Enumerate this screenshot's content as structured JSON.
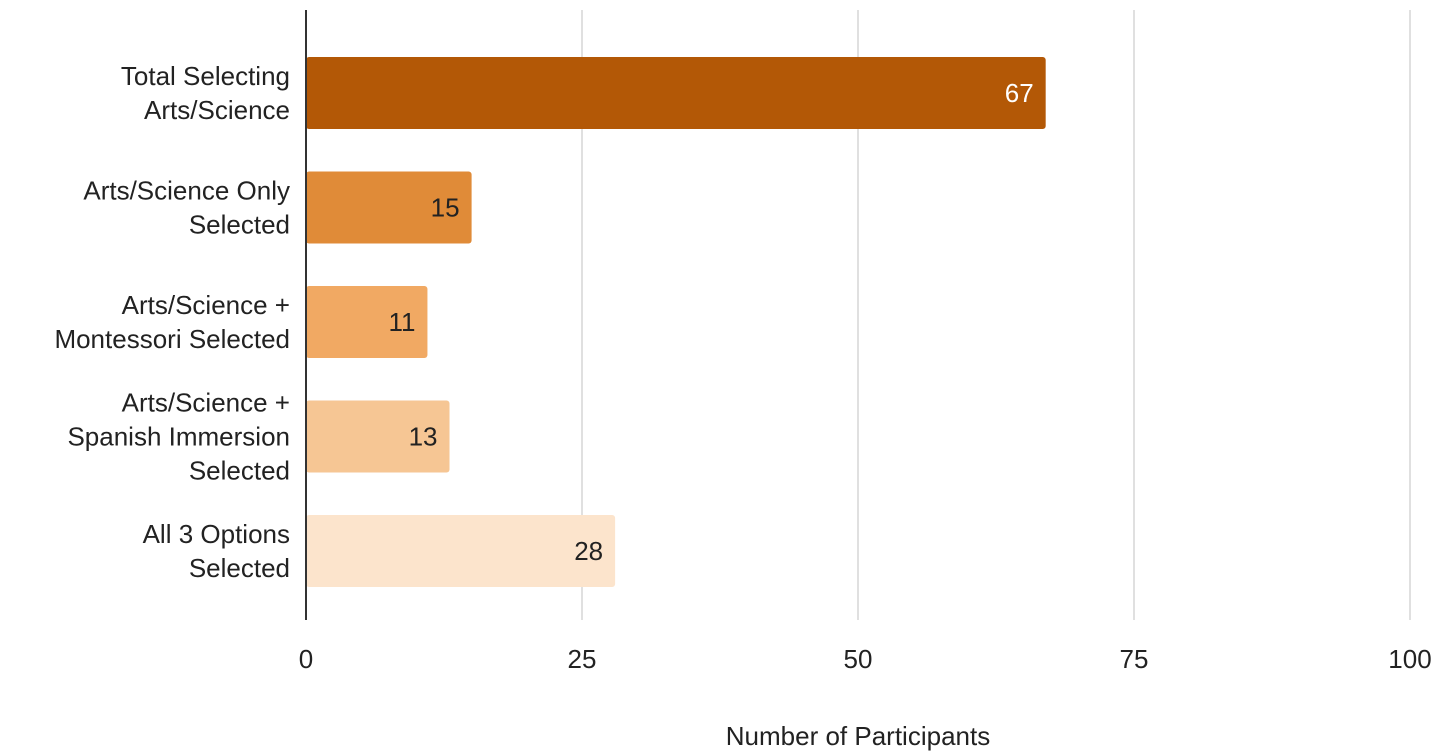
{
  "chart_data": {
    "type": "bar",
    "orientation": "horizontal",
    "categories": [
      [
        "Total Selecting",
        "Arts/Science"
      ],
      [
        "Arts/Science Only",
        "Selected"
      ],
      [
        "Arts/Science +",
        "Montessori Selected"
      ],
      [
        "Arts/Science +",
        "Spanish Immersion",
        "Selected"
      ],
      [
        "All 3 Options",
        "Selected"
      ]
    ],
    "values": [
      67,
      15,
      11,
      13,
      28
    ],
    "data_labels": [
      "67",
      "15",
      "11",
      "13",
      "28"
    ],
    "colors": [
      "#b35806",
      "#e08b38",
      "#f1a963",
      "#f6c694",
      "#fce4cc"
    ],
    "label_colors": [
      "#ffffff",
      "#222222",
      "#222222",
      "#222222",
      "#222222"
    ],
    "xlabel": "Number of Participants",
    "xlim": [
      0,
      100
    ],
    "xticks": [
      0,
      25,
      50,
      75,
      100
    ],
    "xtick_labels": [
      "0",
      "25",
      "50",
      "75",
      "100"
    ],
    "grid": true,
    "legend": "none"
  }
}
